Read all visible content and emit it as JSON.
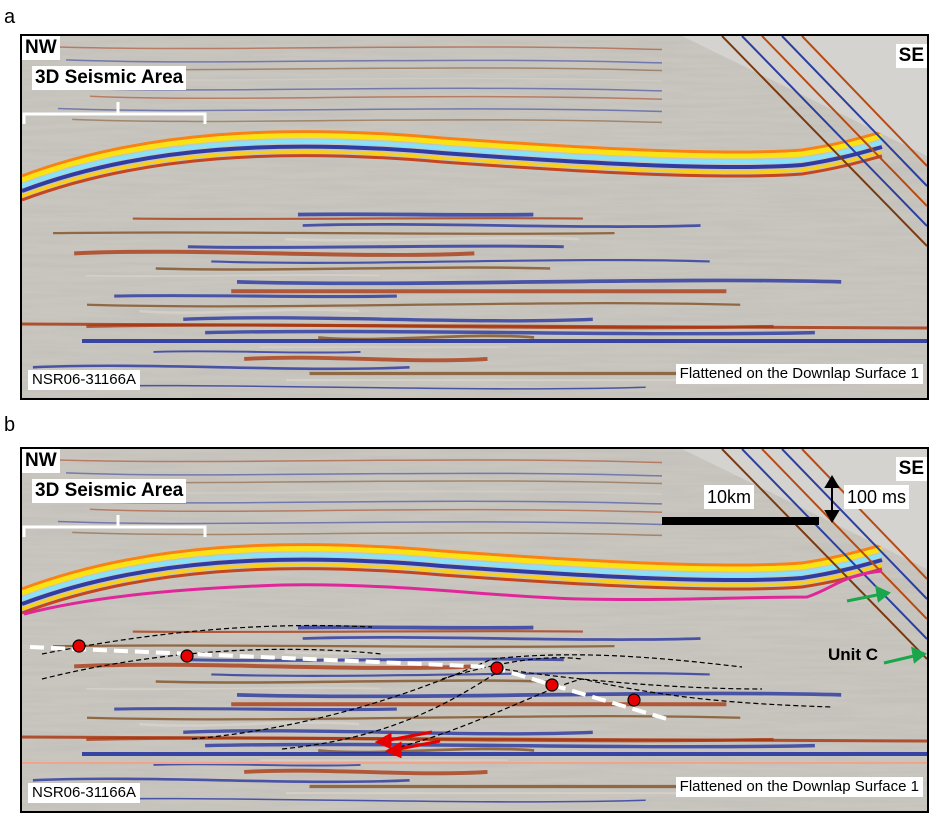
{
  "panels": [
    {
      "letter": "a",
      "direction_left": "NW",
      "direction_right": "SE",
      "area_label": "3D Seismic Area",
      "line_id": "NSR06-31166A",
      "note": "Flattened on the Downlap Surface 1"
    },
    {
      "letter": "b",
      "direction_left": "NW",
      "direction_right": "SE",
      "area_label": "3D Seismic Area",
      "line_id": "NSR06-31166A",
      "note": "Flattened on the Downlap Surface 1",
      "horizontal_scale": "10km",
      "vertical_scale": "100 ms",
      "unit_label": "Unit C"
    }
  ],
  "colors": {
    "surface_line": "#e0279a",
    "fault_line": "#ffffff",
    "fault_marker": "#e60000",
    "arrow_red": "#e60000",
    "arrow_green": "#1aa64a",
    "flatten_line": "#f4a38a"
  }
}
